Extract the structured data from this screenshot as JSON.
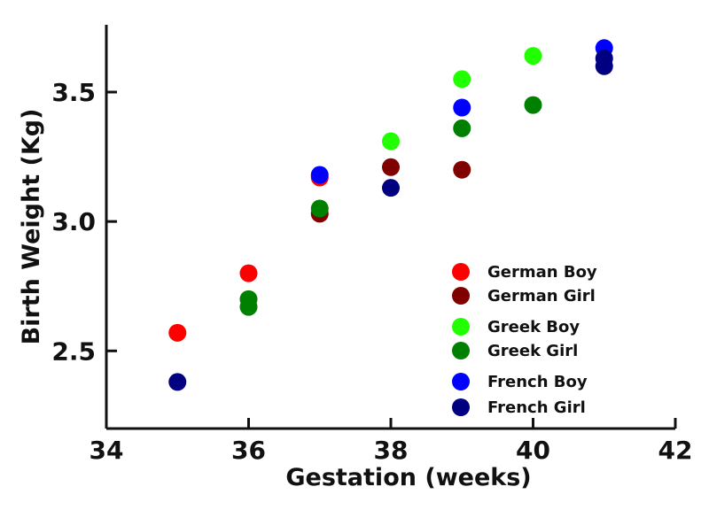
{
  "chart_data": {
    "type": "scatter",
    "title": "",
    "xlabel": "Gestation (weeks)",
    "ylabel": "Birth Weight (Kg)",
    "xlim": [
      34,
      42
    ],
    "ylim": [
      2.2,
      3.76
    ],
    "xticks": [
      "34",
      "36",
      "38",
      "40",
      "42"
    ],
    "yticks": [
      "2.5",
      "3.0",
      "3.5"
    ],
    "grid": false,
    "legend_position": "bottom-right",
    "series": [
      {
        "name": "German Boy",
        "color": "#ff0000",
        "points": [
          [
            35,
            2.57
          ],
          [
            36,
            2.8
          ],
          [
            37,
            3.17
          ]
        ]
      },
      {
        "name": "German Girl",
        "color": "#800000",
        "points": [
          [
            37,
            3.03
          ],
          [
            38,
            3.21
          ],
          [
            39,
            3.2
          ]
        ]
      },
      {
        "name": "Greek Boy",
        "color": "#22ff00",
        "points": [
          [
            38,
            3.31
          ],
          [
            39,
            3.55
          ],
          [
            40,
            3.64
          ]
        ]
      },
      {
        "name": "Greek Girl",
        "color": "#008000",
        "points": [
          [
            36,
            2.7
          ],
          [
            36,
            2.67
          ],
          [
            37,
            3.05
          ],
          [
            39,
            3.36
          ],
          [
            40,
            3.45
          ]
        ]
      },
      {
        "name": "French Boy",
        "color": "#0000ff",
        "points": [
          [
            37,
            3.18
          ],
          [
            39,
            3.44
          ],
          [
            41,
            3.67
          ]
        ]
      },
      {
        "name": "French Girl",
        "color": "#000080",
        "points": [
          [
            35,
            2.38
          ],
          [
            38,
            3.13
          ],
          [
            41,
            3.6
          ],
          [
            41,
            3.63
          ]
        ]
      }
    ]
  }
}
